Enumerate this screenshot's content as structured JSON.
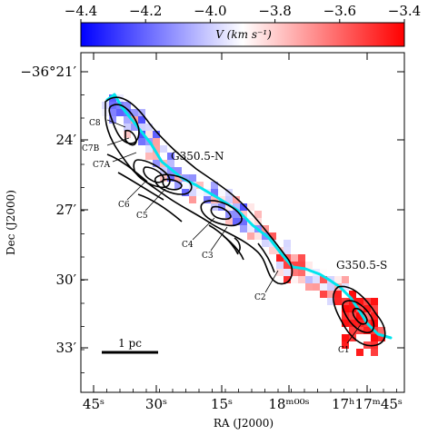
{
  "chart_data": {
    "type": "map",
    "xlabel": "RA (J2000)",
    "ylabel": "Dec (J2000)",
    "colorbar": {
      "label": "V (km s⁻¹)",
      "range": [
        -4.4,
        -3.4
      ],
      "ticks": [
        "−4.4",
        "−4.2",
        "−4.0",
        "−3.8",
        "−3.6",
        "−3.4"
      ],
      "colors": {
        "low": "#0000ff",
        "mid": "#ffffff",
        "high": "#ff0000"
      }
    },
    "x_ticks": [
      "45ˢ",
      "30ˢ",
      "15ˢ",
      "18ᵐ⁰⁰ˢ",
      "17ʰ17ᵐ45ˢ"
    ],
    "y_ticks": [
      "−36°21′",
      "24′",
      "27′",
      "30′",
      "33′"
    ],
    "regions": [
      "G350.5-N",
      "G350.5-S"
    ],
    "clumps": [
      "C1",
      "C2",
      "C3",
      "C4",
      "C5",
      "C6",
      "C7A",
      "C7B",
      "C8"
    ],
    "scale_bar": "1 pc",
    "filament_color": "#00e5ee"
  }
}
